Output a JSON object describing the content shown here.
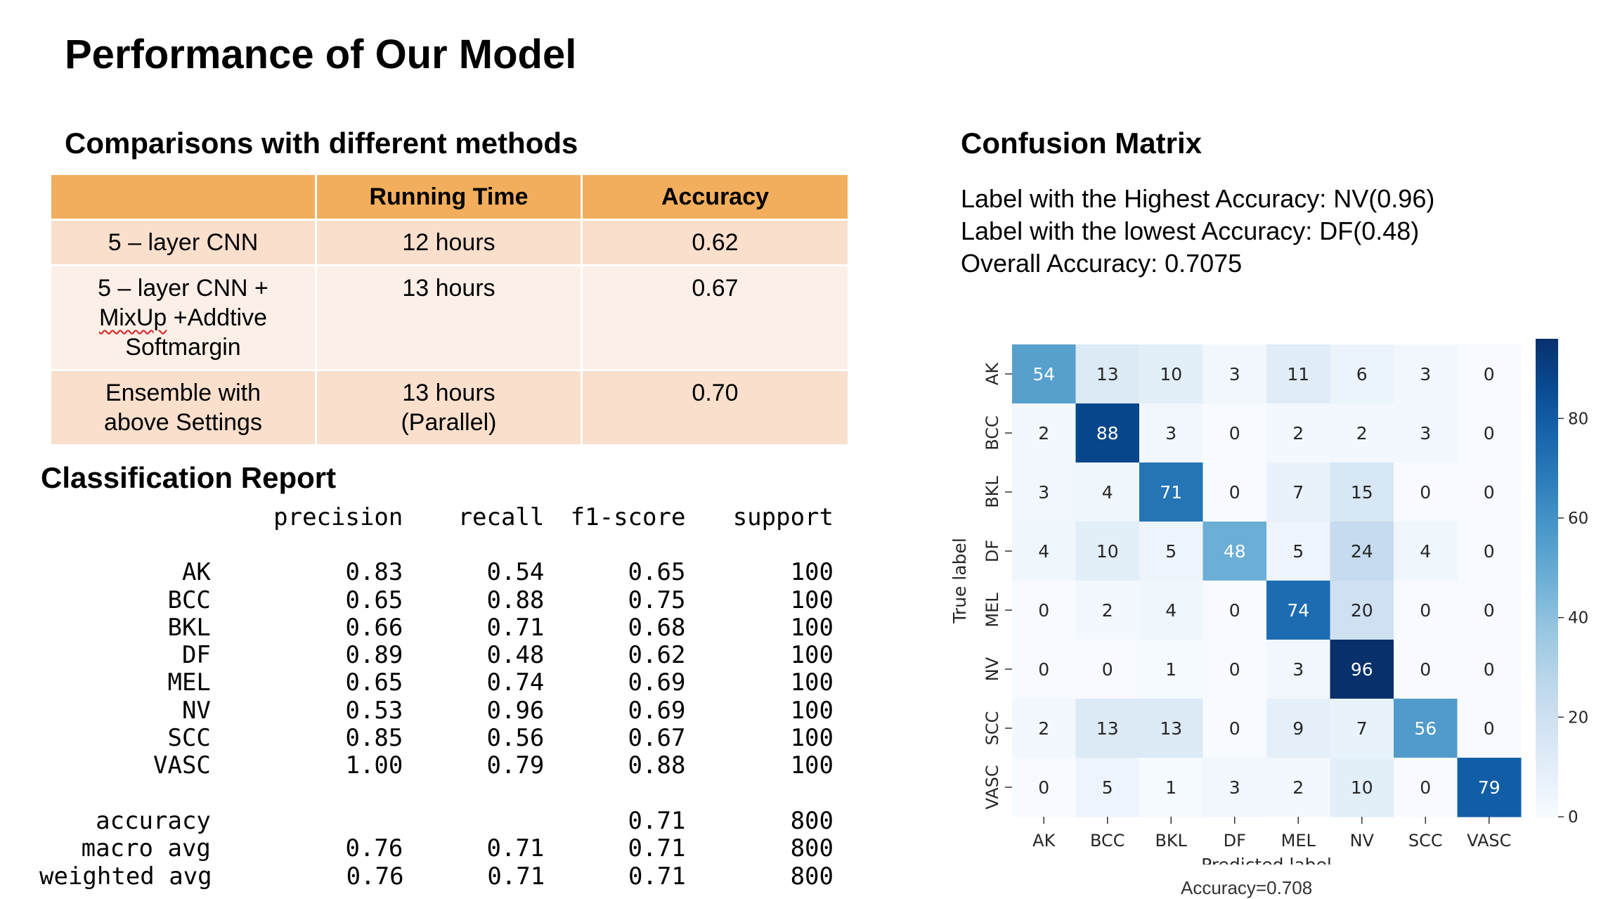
{
  "title": "Performance of Our Model",
  "comparison": {
    "heading": "Comparisons with different methods",
    "headers": [
      "",
      "Running Time",
      "Accuracy"
    ],
    "rows": [
      {
        "method_lines": [
          "5 – layer CNN"
        ],
        "time_lines": [
          "12 hours"
        ],
        "accuracy": "0.62"
      },
      {
        "method_lines": [
          "5 – layer CNN +",
          "MixUp +Addtive",
          "Softmargin"
        ],
        "time_lines": [
          "13 hours"
        ],
        "accuracy": "0.67"
      },
      {
        "method_lines": [
          "Ensemble with",
          "above Settings"
        ],
        "time_lines": [
          "13 hours",
          "(Parallel)"
        ],
        "accuracy": "0.70"
      }
    ]
  },
  "report": {
    "heading": "Classification Report",
    "columns": [
      "precision",
      "recall",
      "f1-score",
      "support"
    ],
    "classes": [
      {
        "label": "AK",
        "precision": "0.83",
        "recall": "0.54",
        "f1": "0.65",
        "support": "100"
      },
      {
        "label": "BCC",
        "precision": "0.65",
        "recall": "0.88",
        "f1": "0.75",
        "support": "100"
      },
      {
        "label": "BKL",
        "precision": "0.66",
        "recall": "0.71",
        "f1": "0.68",
        "support": "100"
      },
      {
        "label": "DF",
        "precision": "0.89",
        "recall": "0.48",
        "f1": "0.62",
        "support": "100"
      },
      {
        "label": "MEL",
        "precision": "0.65",
        "recall": "0.74",
        "f1": "0.69",
        "support": "100"
      },
      {
        "label": "NV",
        "precision": "0.53",
        "recall": "0.96",
        "f1": "0.69",
        "support": "100"
      },
      {
        "label": "SCC",
        "precision": "0.85",
        "recall": "0.56",
        "f1": "0.67",
        "support": "100"
      },
      {
        "label": "VASC",
        "precision": "1.00",
        "recall": "0.79",
        "f1": "0.88",
        "support": "100"
      }
    ],
    "summary": [
      {
        "label": "accuracy",
        "precision": "",
        "recall": "",
        "f1": "0.71",
        "support": "800"
      },
      {
        "label": "macro avg",
        "precision": "0.76",
        "recall": "0.71",
        "f1": "0.71",
        "support": "800"
      },
      {
        "label": "weighted avg",
        "precision": "0.76",
        "recall": "0.71",
        "f1": "0.71",
        "support": "800"
      }
    ]
  },
  "confusion": {
    "heading": "Confusion Matrix",
    "highest": "Label with the Highest Accuracy: NV(0.96)",
    "lowest": "Label with the lowest Accuracy: DF(0.48)",
    "overall": "Overall Accuracy: 0.7075",
    "caption": "Accuracy=0.708"
  },
  "chart_data": {
    "type": "heatmap",
    "title": "",
    "x_labels": [
      "AK",
      "BCC",
      "BKL",
      "DF",
      "MEL",
      "NV",
      "SCC",
      "VASC"
    ],
    "y_labels": [
      "AK",
      "BCC",
      "BKL",
      "DF",
      "MEL",
      "NV",
      "SCC",
      "VASC"
    ],
    "xlabel": "Predicted label",
    "ylabel": "True label",
    "values": [
      [
        54,
        13,
        10,
        3,
        11,
        6,
        3,
        0
      ],
      [
        2,
        88,
        3,
        0,
        2,
        2,
        3,
        0
      ],
      [
        3,
        4,
        71,
        0,
        7,
        15,
        0,
        0
      ],
      [
        4,
        10,
        5,
        48,
        5,
        24,
        4,
        0
      ],
      [
        0,
        2,
        4,
        0,
        74,
        20,
        0,
        0
      ],
      [
        0,
        0,
        1,
        0,
        3,
        96,
        0,
        0
      ],
      [
        2,
        13,
        13,
        0,
        9,
        7,
        56,
        0
      ],
      [
        0,
        5,
        1,
        3,
        2,
        10,
        0,
        79
      ]
    ],
    "vmin": 0,
    "vmax": 96,
    "colorbar_ticks": [
      0,
      20,
      40,
      60,
      80
    ],
    "colormap": "Blues",
    "colors": {
      "low": "#f7fbff",
      "high": "#08306b"
    }
  }
}
